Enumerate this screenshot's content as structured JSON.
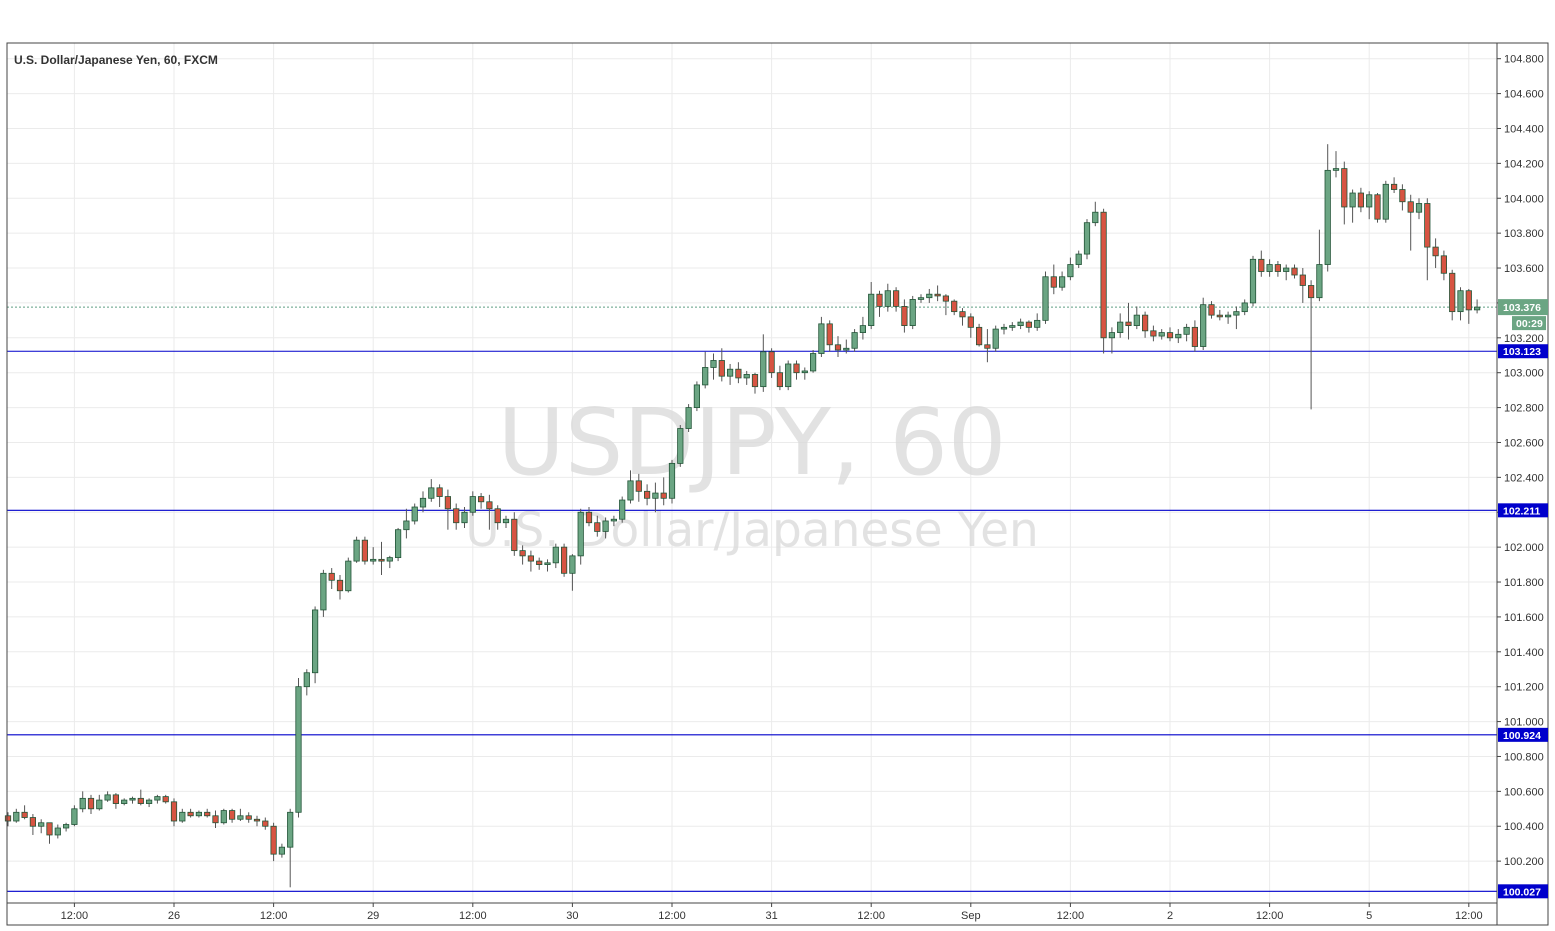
{
  "chart_data": {
    "type": "candlestick",
    "title": "U.S. Dollar/Japanese Yen, 60, FXCM",
    "watermark": {
      "symbol": "USDJPY, 60",
      "name": "U.S. Dollar/Japanese Yen"
    },
    "ylim": [
      99.96,
      104.89
    ],
    "price_ticks": [
      "104.800",
      "104.600",
      "104.400",
      "104.200",
      "104.000",
      "103.800",
      "103.600",
      "103.400",
      "103.200",
      "103.000",
      "102.800",
      "102.600",
      "102.400",
      "102.200",
      "102.000",
      "101.800",
      "101.600",
      "101.400",
      "101.200",
      "101.000",
      "100.800",
      "100.600",
      "100.400",
      "100.200"
    ],
    "time_ticks": [
      {
        "label": "12:00",
        "bar": 8
      },
      {
        "label": "26",
        "bar": 20
      },
      {
        "label": "12:00",
        "bar": 32
      },
      {
        "label": "29",
        "bar": 44
      },
      {
        "label": "12:00",
        "bar": 56
      },
      {
        "label": "30",
        "bar": 68
      },
      {
        "label": "12:00",
        "bar": 80
      },
      {
        "label": "31",
        "bar": 92
      },
      {
        "label": "12:00",
        "bar": 104
      },
      {
        "label": "Sep",
        "bar": 116
      },
      {
        "label": "12:00",
        "bar": 128
      },
      {
        "label": "2",
        "bar": 140
      },
      {
        "label": "12:00",
        "bar": 152
      },
      {
        "label": "5",
        "bar": 164
      },
      {
        "label": "12:00",
        "bar": 176
      }
    ],
    "grid": true,
    "last_price": {
      "value": 103.376,
      "label": "103.376",
      "countdown": "00:29"
    },
    "horizontal_lines": [
      {
        "value": 103.123,
        "label": "103.123"
      },
      {
        "value": 102.211,
        "label": "102.211"
      },
      {
        "value": 100.924,
        "label": "100.924"
      },
      {
        "value": 100.027,
        "label": "100.027"
      }
    ],
    "candles": [
      [
        100.46,
        100.48,
        100.4,
        100.43
      ],
      [
        100.43,
        100.5,
        100.42,
        100.48
      ],
      [
        100.48,
        100.52,
        100.44,
        100.45
      ],
      [
        100.45,
        100.47,
        100.35,
        100.4
      ],
      [
        100.4,
        100.44,
        100.36,
        100.42
      ],
      [
        100.42,
        100.42,
        100.3,
        100.35
      ],
      [
        100.35,
        100.41,
        100.33,
        100.39
      ],
      [
        100.39,
        100.42,
        100.37,
        100.41
      ],
      [
        100.41,
        100.52,
        100.4,
        100.5
      ],
      [
        100.5,
        100.6,
        100.48,
        100.56
      ],
      [
        100.56,
        100.58,
        100.47,
        100.5
      ],
      [
        100.5,
        100.58,
        100.49,
        100.55
      ],
      [
        100.55,
        100.6,
        100.54,
        100.58
      ],
      [
        100.58,
        100.59,
        100.5,
        100.53
      ],
      [
        100.53,
        100.56,
        100.52,
        100.55
      ],
      [
        100.55,
        100.57,
        100.53,
        100.56
      ],
      [
        100.56,
        100.61,
        100.52,
        100.53
      ],
      [
        100.53,
        100.56,
        100.51,
        100.55
      ],
      [
        100.55,
        100.58,
        100.53,
        100.57
      ],
      [
        100.57,
        100.58,
        100.53,
        100.54
      ],
      [
        100.54,
        100.56,
        100.4,
        100.43
      ],
      [
        100.43,
        100.5,
        100.42,
        100.48
      ],
      [
        100.48,
        100.5,
        100.45,
        100.46
      ],
      [
        100.46,
        100.49,
        100.45,
        100.48
      ],
      [
        100.48,
        100.5,
        100.45,
        100.46
      ],
      [
        100.46,
        100.49,
        100.39,
        100.42
      ],
      [
        100.42,
        100.5,
        100.41,
        100.49
      ],
      [
        100.49,
        100.5,
        100.42,
        100.44
      ],
      [
        100.44,
        100.5,
        100.43,
        100.46
      ],
      [
        100.46,
        100.48,
        100.42,
        100.44
      ],
      [
        100.44,
        100.46,
        100.4,
        100.43
      ],
      [
        100.43,
        100.45,
        100.38,
        100.4
      ],
      [
        100.4,
        100.42,
        100.2,
        100.24
      ],
      [
        100.24,
        100.3,
        100.22,
        100.28
      ],
      [
        100.28,
        100.5,
        100.05,
        100.48
      ],
      [
        100.48,
        101.25,
        100.45,
        101.2
      ],
      [
        101.2,
        101.3,
        101.15,
        101.28
      ],
      [
        101.28,
        101.66,
        101.22,
        101.64
      ],
      [
        101.64,
        101.87,
        101.6,
        101.85
      ],
      [
        101.85,
        101.88,
        101.76,
        101.81
      ],
      [
        101.81,
        101.84,
        101.7,
        101.75
      ],
      [
        101.75,
        101.94,
        101.74,
        101.92
      ],
      [
        101.92,
        102.06,
        101.91,
        102.04
      ],
      [
        102.04,
        102.06,
        101.9,
        101.92
      ],
      [
        101.92,
        102.0,
        101.9,
        101.93
      ],
      [
        101.93,
        102.03,
        101.84,
        101.92
      ],
      [
        101.92,
        101.95,
        101.88,
        101.94
      ],
      [
        101.94,
        102.11,
        101.92,
        102.1
      ],
      [
        102.1,
        102.22,
        102.05,
        102.15
      ],
      [
        102.15,
        102.25,
        102.13,
        102.23
      ],
      [
        102.23,
        102.32,
        102.2,
        102.28
      ],
      [
        102.28,
        102.39,
        102.26,
        102.34
      ],
      [
        102.34,
        102.36,
        102.23,
        102.29
      ],
      [
        102.29,
        102.33,
        102.1,
        102.22
      ],
      [
        102.22,
        102.25,
        102.1,
        102.14
      ],
      [
        102.14,
        102.23,
        102.11,
        102.2
      ],
      [
        102.2,
        102.32,
        102.18,
        102.29
      ],
      [
        102.29,
        102.31,
        102.22,
        102.26
      ],
      [
        102.26,
        102.3,
        102.1,
        102.22
      ],
      [
        102.22,
        102.24,
        102.1,
        102.14
      ],
      [
        102.14,
        102.18,
        102.11,
        102.16
      ],
      [
        102.16,
        102.2,
        101.95,
        101.98
      ],
      [
        101.98,
        102.01,
        101.9,
        101.95
      ],
      [
        101.95,
        101.98,
        101.86,
        101.92
      ],
      [
        101.92,
        101.94,
        101.87,
        101.9
      ],
      [
        101.9,
        101.93,
        101.86,
        101.91
      ],
      [
        101.91,
        102.02,
        101.88,
        102.0
      ],
      [
        102.0,
        102.02,
        101.83,
        101.85
      ],
      [
        101.85,
        101.96,
        101.75,
        101.95
      ],
      [
        101.95,
        102.22,
        101.9,
        102.2
      ],
      [
        102.2,
        102.23,
        102.12,
        102.14
      ],
      [
        102.14,
        102.18,
        102.06,
        102.09
      ],
      [
        102.09,
        102.17,
        102.05,
        102.15
      ],
      [
        102.15,
        102.18,
        102.12,
        102.16
      ],
      [
        102.16,
        102.29,
        102.14,
        102.27
      ],
      [
        102.27,
        102.44,
        102.25,
        102.38
      ],
      [
        102.38,
        102.42,
        102.26,
        102.32
      ],
      [
        102.32,
        102.36,
        102.24,
        102.28
      ],
      [
        102.28,
        102.37,
        102.2,
        102.31
      ],
      [
        102.31,
        102.4,
        102.24,
        102.28
      ],
      [
        102.28,
        102.5,
        102.25,
        102.48
      ],
      [
        102.48,
        102.7,
        102.46,
        102.68
      ],
      [
        102.68,
        102.82,
        102.66,
        102.8
      ],
      [
        102.8,
        102.95,
        102.78,
        102.93
      ],
      [
        102.93,
        103.12,
        102.91,
        103.03
      ],
      [
        103.03,
        103.11,
        102.96,
        103.07
      ],
      [
        103.07,
        103.14,
        102.95,
        102.98
      ],
      [
        102.98,
        103.05,
        102.93,
        103.02
      ],
      [
        103.02,
        103.06,
        102.94,
        102.97
      ],
      [
        102.97,
        103.01,
        102.93,
        102.99
      ],
      [
        102.99,
        103.0,
        102.88,
        102.92
      ],
      [
        102.92,
        103.22,
        102.89,
        103.12
      ],
      [
        103.12,
        103.14,
        102.97,
        103.0
      ],
      [
        103.0,
        103.04,
        102.9,
        102.92
      ],
      [
        102.92,
        103.07,
        102.9,
        103.05
      ],
      [
        103.05,
        103.07,
        102.96,
        103.0
      ],
      [
        103.0,
        103.03,
        102.96,
        103.01
      ],
      [
        103.01,
        103.13,
        103.0,
        103.11
      ],
      [
        103.11,
        103.32,
        103.09,
        103.28
      ],
      [
        103.28,
        103.3,
        103.12,
        103.16
      ],
      [
        103.16,
        103.21,
        103.09,
        103.13
      ],
      [
        103.13,
        103.19,
        103.11,
        103.14
      ],
      [
        103.14,
        103.25,
        103.12,
        103.23
      ],
      [
        103.23,
        103.32,
        103.19,
        103.27
      ],
      [
        103.27,
        103.52,
        103.25,
        103.45
      ],
      [
        103.45,
        103.47,
        103.32,
        103.38
      ],
      [
        103.38,
        103.51,
        103.35,
        103.47
      ],
      [
        103.47,
        103.49,
        103.35,
        103.38
      ],
      [
        103.38,
        103.42,
        103.23,
        103.27
      ],
      [
        103.27,
        103.44,
        103.25,
        103.42
      ],
      [
        103.42,
        103.45,
        103.4,
        103.43
      ],
      [
        103.43,
        103.48,
        103.4,
        103.45
      ],
      [
        103.45,
        103.5,
        103.41,
        103.44
      ],
      [
        103.44,
        103.45,
        103.33,
        103.41
      ],
      [
        103.41,
        103.42,
        103.33,
        103.35
      ],
      [
        103.35,
        103.37,
        103.27,
        103.32
      ],
      [
        103.32,
        103.34,
        103.2,
        103.26
      ],
      [
        103.26,
        103.28,
        103.15,
        103.16
      ],
      [
        103.16,
        103.25,
        103.06,
        103.14
      ],
      [
        103.14,
        103.27,
        103.12,
        103.25
      ],
      [
        103.25,
        103.28,
        103.22,
        103.26
      ],
      [
        103.26,
        103.29,
        103.24,
        103.27
      ],
      [
        103.27,
        103.31,
        103.25,
        103.29
      ],
      [
        103.29,
        103.3,
        103.23,
        103.26
      ],
      [
        103.26,
        103.34,
        103.24,
        103.3
      ],
      [
        103.3,
        103.58,
        103.28,
        103.55
      ],
      [
        103.55,
        103.62,
        103.45,
        103.49
      ],
      [
        103.49,
        103.58,
        103.47,
        103.55
      ],
      [
        103.55,
        103.66,
        103.53,
        103.62
      ],
      [
        103.62,
        103.7,
        103.6,
        103.68
      ],
      [
        103.68,
        103.88,
        103.65,
        103.86
      ],
      [
        103.86,
        103.98,
        103.84,
        103.92
      ],
      [
        103.92,
        103.94,
        103.11,
        103.2
      ],
      [
        103.2,
        103.26,
        103.11,
        103.23
      ],
      [
        103.23,
        103.34,
        103.2,
        103.29
      ],
      [
        103.29,
        103.4,
        103.19,
        103.27
      ],
      [
        103.27,
        103.38,
        103.25,
        103.33
      ],
      [
        103.33,
        103.35,
        103.2,
        103.24
      ],
      [
        103.24,
        103.27,
        103.18,
        103.21
      ],
      [
        103.21,
        103.25,
        103.19,
        103.23
      ],
      [
        103.23,
        103.26,
        103.18,
        103.2
      ],
      [
        103.2,
        103.25,
        103.17,
        103.22
      ],
      [
        103.22,
        103.28,
        103.18,
        103.26
      ],
      [
        103.26,
        103.3,
        103.12,
        103.15
      ],
      [
        103.15,
        103.43,
        103.13,
        103.39
      ],
      [
        103.39,
        103.41,
        103.31,
        103.33
      ],
      [
        103.33,
        103.36,
        103.3,
        103.32
      ],
      [
        103.32,
        103.35,
        103.28,
        103.33
      ],
      [
        103.33,
        103.38,
        103.25,
        103.35
      ],
      [
        103.35,
        103.42,
        103.33,
        103.4
      ],
      [
        103.4,
        103.67,
        103.38,
        103.65
      ],
      [
        103.65,
        103.7,
        103.55,
        103.58
      ],
      [
        103.58,
        103.65,
        103.55,
        103.62
      ],
      [
        103.62,
        103.64,
        103.55,
        103.58
      ],
      [
        103.58,
        103.62,
        103.53,
        103.6
      ],
      [
        103.6,
        103.62,
        103.54,
        103.56
      ],
      [
        103.56,
        103.6,
        103.4,
        103.5
      ],
      [
        103.5,
        103.53,
        102.79,
        103.43
      ],
      [
        103.43,
        103.82,
        103.41,
        103.62
      ],
      [
        103.62,
        104.31,
        103.58,
        104.16
      ],
      [
        104.16,
        104.27,
        104.12,
        104.17
      ],
      [
        104.17,
        104.21,
        103.85,
        103.95
      ],
      [
        103.95,
        104.05,
        103.86,
        104.03
      ],
      [
        104.03,
        104.06,
        103.92,
        103.95
      ],
      [
        103.95,
        104.04,
        103.88,
        104.02
      ],
      [
        104.02,
        104.03,
        103.86,
        103.88
      ],
      [
        103.88,
        104.1,
        103.86,
        104.08
      ],
      [
        104.08,
        104.12,
        104.03,
        104.05
      ],
      [
        104.05,
        104.08,
        103.93,
        103.98
      ],
      [
        103.98,
        104.02,
        103.7,
        103.92
      ],
      [
        103.92,
        104.0,
        103.88,
        103.97
      ],
      [
        103.97,
        104.0,
        103.53,
        103.72
      ],
      [
        103.72,
        103.77,
        103.6,
        103.67
      ],
      [
        103.67,
        103.7,
        103.53,
        103.57
      ],
      [
        103.57,
        103.59,
        103.3,
        103.35
      ],
      [
        103.35,
        103.49,
        103.3,
        103.47
      ],
      [
        103.47,
        103.48,
        103.28,
        103.36
      ],
      [
        103.36,
        103.42,
        103.34,
        103.376
      ]
    ]
  }
}
